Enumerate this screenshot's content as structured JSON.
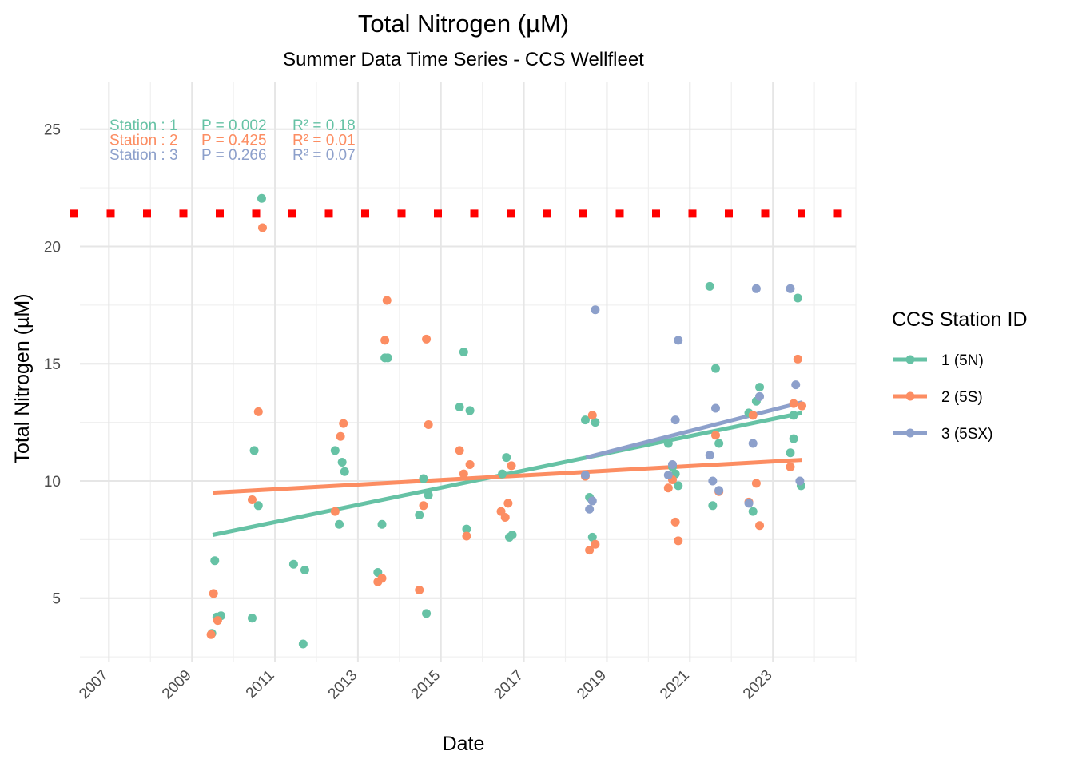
{
  "chart_data": {
    "type": "scatter",
    "title": "Total Nitrogen (µM)",
    "subtitle": "Summer Data Time Series - CCS Wellfleet",
    "xlabel": "Date",
    "ylabel": "Total Nitrogen (µM)",
    "xlim": [
      2006.3,
      2025.0
    ],
    "ylim": [
      2.3,
      27.0
    ],
    "x_ticks": [
      2007,
      2009,
      2011,
      2013,
      2015,
      2017,
      2019,
      2021,
      2023
    ],
    "x_tick_labels": [
      "2007",
      "2009",
      "2011",
      "2013",
      "2015",
      "2017",
      "2019",
      "2021",
      "2023"
    ],
    "y_ticks": [
      5,
      10,
      15,
      20,
      25
    ],
    "y_tick_labels": [
      "5",
      "10",
      "15",
      "20",
      "25"
    ],
    "grid": true,
    "reference_line": {
      "y": 21.4,
      "color": "#ff0000",
      "style": "dotted"
    },
    "legend": {
      "title": "CCS Station ID",
      "position": "right",
      "entries": [
        "1 (5N)",
        "2 (5S)",
        "3 (5SX)"
      ]
    },
    "annotations": [
      {
        "station": "Station : 1",
        "p": "P = 0.002",
        "r2": "R² = 0.18",
        "color": "#66c2a5"
      },
      {
        "station": "Station : 2",
        "p": "P = 0.425",
        "r2": "R² = 0.01",
        "color": "#fc8d62"
      },
      {
        "station": "Station : 3",
        "p": "P = 0.266",
        "r2": "R² = 0.07",
        "color": "#8da0cb"
      }
    ],
    "series": [
      {
        "name": "1 (5N)",
        "color": "#66c2a5",
        "points": [
          [
            2009.48,
            3.5
          ],
          [
            2009.55,
            6.6
          ],
          [
            2009.6,
            4.2
          ],
          [
            2009.7,
            4.25
          ],
          [
            2010.45,
            4.15
          ],
          [
            2010.5,
            11.3
          ],
          [
            2010.6,
            8.95
          ],
          [
            2010.68,
            22.05
          ],
          [
            2011.45,
            6.45
          ],
          [
            2011.72,
            6.2
          ],
          [
            2011.68,
            3.05
          ],
          [
            2012.45,
            11.3
          ],
          [
            2012.55,
            8.15
          ],
          [
            2012.62,
            10.8
          ],
          [
            2012.68,
            10.4
          ],
          [
            2013.48,
            6.1
          ],
          [
            2013.58,
            8.15
          ],
          [
            2013.65,
            15.25
          ],
          [
            2013.72,
            15.25
          ],
          [
            2014.48,
            8.55
          ],
          [
            2014.58,
            10.1
          ],
          [
            2014.65,
            4.35
          ],
          [
            2014.7,
            9.4
          ],
          [
            2015.45,
            13.15
          ],
          [
            2015.55,
            15.5
          ],
          [
            2015.62,
            7.95
          ],
          [
            2015.7,
            13.0
          ],
          [
            2016.48,
            10.3
          ],
          [
            2016.58,
            11.0
          ],
          [
            2016.65,
            7.6
          ],
          [
            2016.72,
            7.7
          ],
          [
            2018.48,
            12.6
          ],
          [
            2018.58,
            9.3
          ],
          [
            2018.65,
            7.6
          ],
          [
            2018.72,
            12.5
          ],
          [
            2020.48,
            11.6
          ],
          [
            2020.58,
            10.6
          ],
          [
            2020.65,
            10.3
          ],
          [
            2020.72,
            9.8
          ],
          [
            2021.48,
            18.3
          ],
          [
            2021.55,
            8.95
          ],
          [
            2021.62,
            14.8
          ],
          [
            2021.7,
            11.6
          ],
          [
            2022.42,
            12.9
          ],
          [
            2022.52,
            8.7
          ],
          [
            2022.6,
            13.4
          ],
          [
            2022.68,
            14.0
          ],
          [
            2023.42,
            11.2
          ],
          [
            2023.5,
            11.8
          ],
          [
            2023.5,
            12.8
          ],
          [
            2023.6,
            17.8
          ],
          [
            2023.68,
            9.8
          ]
        ],
        "trend": [
          [
            2009.5,
            7.7
          ],
          [
            2023.7,
            12.9
          ]
        ]
      },
      {
        "name": "2 (5S)",
        "color": "#fc8d62",
        "points": [
          [
            2009.46,
            3.45
          ],
          [
            2009.52,
            5.2
          ],
          [
            2009.62,
            4.05
          ],
          [
            2010.45,
            9.2
          ],
          [
            2010.6,
            12.95
          ],
          [
            2010.7,
            20.8
          ],
          [
            2012.45,
            8.7
          ],
          [
            2012.58,
            11.9
          ],
          [
            2012.65,
            12.45
          ],
          [
            2013.48,
            5.7
          ],
          [
            2013.58,
            5.85
          ],
          [
            2013.65,
            16.0
          ],
          [
            2013.7,
            17.7
          ],
          [
            2014.48,
            5.35
          ],
          [
            2014.58,
            8.95
          ],
          [
            2014.65,
            16.05
          ],
          [
            2014.7,
            12.4
          ],
          [
            2015.45,
            11.3
          ],
          [
            2015.55,
            10.3
          ],
          [
            2015.62,
            7.65
          ],
          [
            2015.7,
            10.7
          ],
          [
            2016.45,
            8.7
          ],
          [
            2016.55,
            8.45
          ],
          [
            2016.62,
            9.05
          ],
          [
            2016.7,
            10.65
          ],
          [
            2018.48,
            10.2
          ],
          [
            2018.58,
            7.05
          ],
          [
            2018.65,
            12.8
          ],
          [
            2018.72,
            7.3
          ],
          [
            2020.48,
            9.7
          ],
          [
            2020.58,
            10.05
          ],
          [
            2020.65,
            8.25
          ],
          [
            2020.72,
            7.45
          ],
          [
            2021.62,
            11.95
          ],
          [
            2021.7,
            9.55
          ],
          [
            2022.42,
            9.1
          ],
          [
            2022.52,
            12.8
          ],
          [
            2022.6,
            9.9
          ],
          [
            2022.68,
            8.1
          ],
          [
            2023.42,
            10.6
          ],
          [
            2023.5,
            13.3
          ],
          [
            2023.6,
            15.2
          ],
          [
            2023.7,
            13.2
          ]
        ],
        "trend": [
          [
            2009.5,
            9.5
          ],
          [
            2023.7,
            10.9
          ]
        ]
      },
      {
        "name": "3 (5SX)",
        "color": "#8da0cb",
        "points": [
          [
            2018.48,
            10.25
          ],
          [
            2018.58,
            8.8
          ],
          [
            2018.65,
            9.15
          ],
          [
            2018.72,
            17.3
          ],
          [
            2020.48,
            10.25
          ],
          [
            2020.58,
            10.7
          ],
          [
            2020.65,
            12.6
          ],
          [
            2020.72,
            16.0
          ],
          [
            2021.48,
            11.1
          ],
          [
            2021.55,
            10.0
          ],
          [
            2021.62,
            13.1
          ],
          [
            2021.7,
            9.6
          ],
          [
            2022.42,
            9.05
          ],
          [
            2022.52,
            11.6
          ],
          [
            2022.6,
            18.2
          ],
          [
            2022.68,
            13.6
          ],
          [
            2023.42,
            18.2
          ],
          [
            2023.55,
            14.1
          ],
          [
            2023.65,
            10.0
          ]
        ],
        "trend": [
          [
            2018.5,
            11.0
          ],
          [
            2023.7,
            13.35
          ]
        ]
      }
    ]
  }
}
